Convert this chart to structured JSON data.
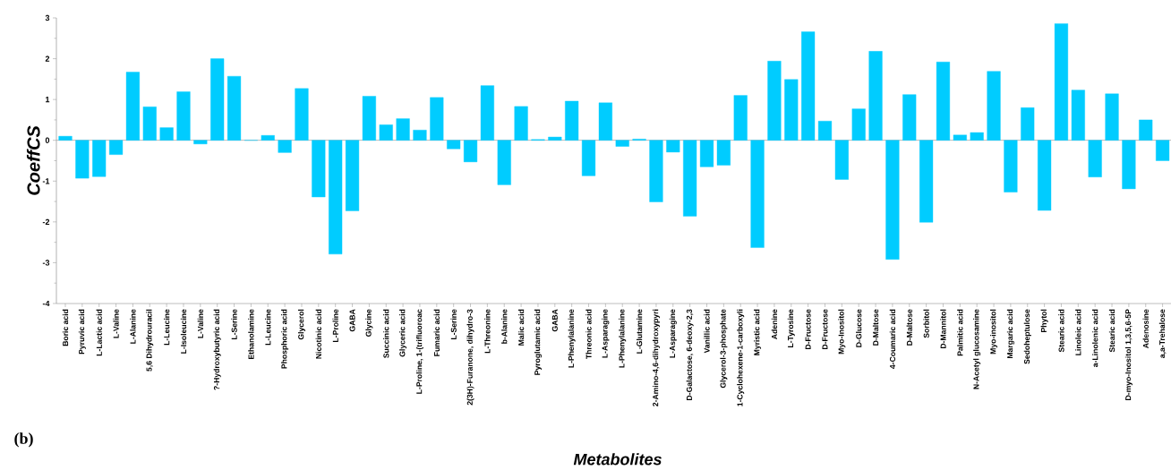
{
  "chart_data": {
    "type": "bar",
    "xlabel": "Metabolites",
    "ylabel": "CoeffCS",
    "annotations": [
      "(b)"
    ],
    "categories": [
      "Boric acid",
      "Pyruvic acid",
      "L-Lactic acid",
      "L-Valine",
      "L-Alanine",
      "5,6 Dihydrouracil",
      "L-Leucine",
      "L-Isoleucine",
      "L-Valine",
      "?-Hydroxybutyric acid",
      "L-Serine",
      "Ethanolamine",
      "L-Leucine",
      "Phosphoric acid",
      "Glycerol",
      "Nicotinic acid",
      "L-Proline",
      "GABA",
      "Glycine",
      "Succinic acid",
      "Glyceric acid",
      "L-Proline, 1-(trifluoroac",
      "Fumaric acid",
      "L-Serine",
      "2(3H)-Furanone, dihydro-3",
      "L-Threonine",
      "b-Alanine",
      "Malic acid",
      "Pyroglutamic acid",
      "GABA",
      "L-Phenylalanine",
      "Threonic acid",
      "L-Asparagine",
      "L-Phenylalanine",
      "L-Glutamine",
      "2-Amino-4,6-dihydroxypyri",
      "L-Asparagine",
      "D-Galactose, 6-deoxy-2,3",
      "Vanillic acid",
      "Glycerol-3-phosphate",
      "1-Cyclohexene-1-carboxyli",
      "Myristic acid",
      "Adenine",
      "L-Tyrosine",
      "D-Fructose",
      "D-Fructose",
      "Myo-Inositol",
      "D-Glucose",
      "D-Maltose",
      "4-Coumaric acid",
      "D-Maltose",
      "Sorbitol",
      "D-Mannitol",
      "Palmitic acid",
      "N-Acetyl glucosamine",
      "Myo-inositol",
      "Margaric acid",
      "Sedoheptulose",
      "Phytol",
      "Stearic acid",
      "Linoleic acid",
      "a-Linolenic acid",
      "Stearic acid",
      "D-myo-Inositol 1,3,5,6-5P",
      "Adenosine",
      "a,a-Trehalose"
    ],
    "values": [
      0.1,
      -0.93,
      -0.89,
      -0.35,
      1.67,
      0.82,
      0.31,
      1.19,
      -0.09,
      2.0,
      1.57,
      0,
      0.12,
      -0.3,
      1.27,
      -1.39,
      -2.79,
      -1.73,
      1.08,
      0.38,
      0.53,
      0.25,
      1.05,
      -0.21,
      -0.53,
      1.34,
      -1.09,
      0.83,
      0.02,
      0.08,
      0.96,
      -0.87,
      0.92,
      -0.15,
      0.03,
      -1.51,
      -0.29,
      -1.86,
      -0.65,
      -0.61,
      1.1,
      -2.63,
      1.94,
      1.49,
      2.66,
      0.47,
      -0.96,
      0.77,
      2.18,
      -2.92,
      1.12,
      -2.01,
      1.92,
      0.13,
      0.19,
      1.69,
      -1.27,
      0.8,
      -1.72,
      2.86,
      1.23,
      -0.9,
      1.14,
      -1.19,
      0.5,
      -0.5
    ],
    "color": "#00ccff",
    "ylim": [
      -4,
      3
    ],
    "yticks": [
      -4,
      -3,
      -2,
      -1,
      0,
      1,
      2,
      3
    ]
  }
}
